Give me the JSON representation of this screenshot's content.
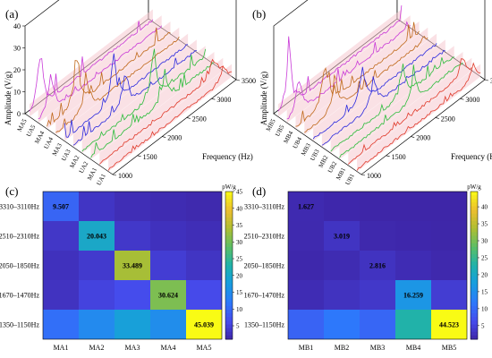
{
  "panels": [
    {
      "letter": "(a)"
    },
    {
      "letter": "(b)"
    },
    {
      "letter": "(c)"
    },
    {
      "letter": "(d)"
    }
  ],
  "chart_data": [
    {
      "type": "line",
      "title": "",
      "ylabel": "Amplitude (V/g)",
      "xlabel": "Frequency (Hz)",
      "z_ticks": [
        "0",
        "10",
        "20",
        "30",
        "40"
      ],
      "x_ticks": [
        "1000",
        "1500",
        "2000",
        "2500",
        "3000",
        "3500"
      ],
      "xlim": [
        1000,
        3500
      ],
      "zlim": [
        0,
        40
      ],
      "series": [
        {
          "name": "UA1",
          "color": "#e03b2b",
          "peak_freq": 3330,
          "peak": 10
        },
        {
          "name": "MA1",
          "color": "#e03b2b",
          "peak_freq": 3300,
          "peak": 13
        },
        {
          "name": "UA2",
          "color": "#2bbd3b",
          "peak_freq": 2500,
          "peak": 22
        },
        {
          "name": "MA2",
          "color": "#2bbd3b",
          "peak_freq": 2450,
          "peak": 27
        },
        {
          "name": "UA3",
          "color": "#2a2adf",
          "peak_freq": 2050,
          "peak": 25
        },
        {
          "name": "MA3",
          "color": "#2a2adf",
          "peak_freq": 2000,
          "peak": 32
        },
        {
          "name": "UA4",
          "color": "#c06a1c",
          "peak_freq": 1620,
          "peak": 24
        },
        {
          "name": "MA4",
          "color": "#c06a1c",
          "peak_freq": 1600,
          "peak": 34
        },
        {
          "name": "UA5",
          "color": "#c93ad8",
          "peak_freq": 1250,
          "peak": 26
        },
        {
          "name": "MA5",
          "color": "#c93ad8",
          "peak_freq": 1220,
          "peak": 38
        }
      ]
    },
    {
      "type": "line",
      "title": "",
      "ylabel": "Amplitude (V/g)",
      "xlabel": "Frequency (Hz)",
      "x_ticks": [
        "1000",
        "1500",
        "2000",
        "2500",
        "3000",
        "3500"
      ],
      "xlim": [
        1000,
        3500
      ],
      "zlim": [
        0,
        40
      ],
      "series": [
        {
          "name": "UB1",
          "color": "#e03b2b",
          "peak_freq": 3350,
          "peak": 9
        },
        {
          "name": "MB1",
          "color": "#e03b2b",
          "peak_freq": 3300,
          "peak": 11
        },
        {
          "name": "UB2",
          "color": "#2bbd3b",
          "peak_freq": 2500,
          "peak": 16
        },
        {
          "name": "MB2",
          "color": "#2bbd3b",
          "peak_freq": 2450,
          "peak": 20
        },
        {
          "name": "UB3",
          "color": "#2a2adf",
          "peak_freq": 2050,
          "peak": 18
        },
        {
          "name": "MB3",
          "color": "#2a2adf",
          "peak_freq": 2000,
          "peak": 22
        },
        {
          "name": "UB4",
          "color": "#c06a1c",
          "peak_freq": 1620,
          "peak": 24
        },
        {
          "name": "MB4",
          "color": "#c06a1c",
          "peak_freq": 1600,
          "peak": 30
        },
        {
          "name": "UB5",
          "color": "#c93ad8",
          "peak_freq": 1250,
          "peak": 22
        },
        {
          "name": "MB5",
          "color": "#c93ad8",
          "peak_freq": 1220,
          "peak": 36
        }
      ]
    },
    {
      "type": "heatmap",
      "title": "",
      "x_categories": [
        "MA1",
        "MA2",
        "MA3",
        "MA4",
        "MA5"
      ],
      "y_categories": [
        "3310–3110Hz",
        "2510–2310Hz",
        "2050–1850Hz",
        "1670–1470Hz",
        "1350–1150Hz"
      ],
      "values": [
        [
          9.507,
          3.2,
          2.1,
          1.8,
          1.5
        ],
        [
          3.4,
          20.043,
          3.6,
          2.6,
          2.2
        ],
        [
          2.6,
          3.9,
          33.489,
          4.3,
          3.1
        ],
        [
          2.9,
          5.2,
          6.4,
          30.624,
          6.1
        ],
        [
          10.8,
          14.6,
          18.2,
          15.1,
          45.039
        ]
      ],
      "labeled_values": [
        "9.507",
        "20.043",
        "33.489",
        "30.624",
        "45.039"
      ],
      "colorbar": {
        "label": "pW/g",
        "min": 1,
        "max": 45,
        "ticks": [
          "45",
          "40",
          "35",
          "30",
          "25",
          "20",
          "15",
          "10",
          "5"
        ]
      }
    },
    {
      "type": "heatmap",
      "title": "",
      "x_categories": [
        "MB1",
        "MB2",
        "MB3",
        "MB4",
        "MB5"
      ],
      "y_categories": [
        "3310–3110Hz",
        "2510–2310Hz",
        "2050–1850Hz",
        "1670–1470Hz",
        "1350–1150Hz"
      ],
      "values": [
        [
          1.627,
          1.2,
          1.0,
          0.9,
          0.8
        ],
        [
          1.5,
          3.019,
          1.4,
          1.2,
          1.1
        ],
        [
          1.3,
          1.8,
          2.816,
          1.9,
          1.4
        ],
        [
          1.9,
          2.8,
          3.5,
          16.259,
          4.2
        ],
        [
          9.2,
          11.8,
          9.6,
          22.8,
          44.523
        ]
      ],
      "labeled_values": [
        "1.627",
        "3.019",
        "2.816",
        "16.259",
        "44.523"
      ],
      "colorbar": {
        "label": "pW/g",
        "min": 1,
        "max": 44.5,
        "ticks": [
          "40",
          "35",
          "30",
          "25",
          "20",
          "15",
          "10",
          "5"
        ]
      }
    }
  ]
}
